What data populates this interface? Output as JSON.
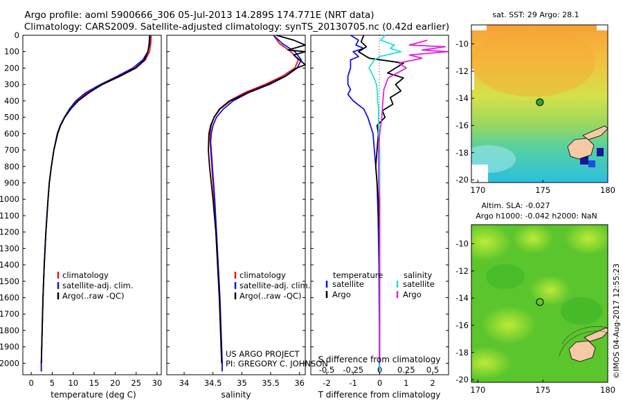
{
  "header": {
    "line1": "Argo profile: aoml 5900666_306 05-Jul-2013 14.289S 174.771E (NRT data)",
    "line2": "Climatology: CARS2009. Satellite-adjusted climatology: synTS_20130705.nc (0.42d earlier)"
  },
  "colors": {
    "climatology": "#ee1111",
    "satellite": "#1111dd",
    "argo": "#000000",
    "sal_satellite": "#22dddd",
    "sal_argo": "#dd22dd",
    "sst_bg": "#8fd27a",
    "sla_bg": "#57c32a",
    "land": "#f6c9a6"
  },
  "depth_axis": {
    "label": "",
    "ticks": [
      "0",
      "100",
      "200",
      "300",
      "400",
      "500",
      "600",
      "700",
      "800",
      "900",
      "1000",
      "1100",
      "1200",
      "1300",
      "1400",
      "1500",
      "1600",
      "1700",
      "1800",
      "1900",
      "2000"
    ]
  },
  "chart_data": [
    {
      "type": "line",
      "name": "temperature",
      "xlabel": "temperature (deg C)",
      "xlim": [
        -2,
        31
      ],
      "ylim": [
        2070,
        0
      ],
      "xticks": [
        "0",
        "5",
        "10",
        "15",
        "20",
        "25",
        "30"
      ],
      "legend": [
        "climatology",
        "satellite-adj. clim.",
        "Argo(..raw -QC)"
      ],
      "series": [
        {
          "name": "climatology",
          "depth": [
            0,
            50,
            100,
            150,
            200,
            250,
            300,
            350,
            400,
            450,
            500,
            550,
            600,
            700,
            800,
            900,
            1000,
            1200,
            1400,
            1600,
            1800,
            2000,
            2050
          ],
          "values": [
            28.6,
            28.5,
            28.2,
            27.2,
            25.0,
            21.2,
            17.0,
            13.4,
            11.0,
            9.3,
            8.0,
            7.0,
            6.3,
            5.4,
            4.8,
            4.3,
            4.0,
            3.5,
            3.1,
            2.8,
            2.6,
            2.4,
            2.4
          ]
        },
        {
          "name": "satellite-adj. clim.",
          "depth": [
            0,
            50,
            100,
            150,
            200,
            250,
            300,
            350,
            400,
            450,
            500,
            550,
            600,
            700,
            800,
            900,
            1000,
            1200,
            1400,
            1600,
            1800,
            2000,
            2050
          ],
          "values": [
            28.2,
            28.1,
            27.8,
            26.6,
            24.2,
            20.5,
            16.5,
            13.0,
            10.6,
            9.1,
            7.9,
            6.9,
            6.2,
            5.4,
            4.8,
            4.3,
            4.0,
            3.5,
            3.1,
            2.8,
            2.6,
            2.4,
            2.4
          ]
        },
        {
          "name": "Argo",
          "depth": [
            0,
            50,
            100,
            150,
            200,
            250,
            300,
            350,
            400,
            450,
            500,
            550,
            600,
            700,
            800,
            900,
            1000,
            1200,
            1400,
            1600,
            1800,
            2000
          ],
          "values": [
            28.3,
            28.2,
            27.8,
            27.0,
            24.8,
            21.0,
            16.9,
            13.8,
            11.2,
            9.4,
            8.0,
            7.0,
            6.3,
            5.4,
            4.8,
            4.3,
            4.0,
            3.5,
            3.1,
            2.8,
            2.6,
            2.4
          ]
        }
      ]
    },
    {
      "type": "line",
      "name": "salinity",
      "xlabel": "salinity",
      "xlim": [
        33.7,
        36.1
      ],
      "ylim": [
        2070,
        0
      ],
      "xticks": [
        "34",
        "34.5",
        "35",
        "35.5",
        "36"
      ],
      "legend": [
        "climatology",
        "satellite-adj. clim.",
        "Argo(..raw -QC)"
      ],
      "series": [
        {
          "name": "climatology",
          "depth": [
            0,
            50,
            100,
            150,
            200,
            250,
            300,
            350,
            400,
            450,
            500,
            550,
            600,
            650,
            700,
            800,
            900,
            1000,
            1200,
            1400,
            1600,
            1800,
            2000,
            2050
          ],
          "values": [
            35.55,
            35.65,
            35.85,
            35.98,
            35.92,
            35.7,
            35.4,
            35.05,
            34.78,
            34.61,
            34.52,
            34.47,
            34.45,
            34.45,
            34.46,
            34.48,
            34.5,
            34.52,
            34.56,
            34.59,
            34.62,
            34.64,
            34.66,
            34.66
          ]
        },
        {
          "name": "satellite-adj. clim.",
          "depth": [
            0,
            50,
            100,
            150,
            200,
            250,
            300,
            350,
            400,
            450,
            500,
            550,
            600,
            650,
            700,
            800,
            900,
            1000,
            1200,
            1400,
            1600,
            1800,
            2000,
            2050
          ],
          "values": [
            35.55,
            35.7,
            35.92,
            36.03,
            35.96,
            35.76,
            35.48,
            35.12,
            34.85,
            34.68,
            34.56,
            34.5,
            34.47,
            34.46,
            34.47,
            34.49,
            34.51,
            34.53,
            34.56,
            34.59,
            34.62,
            34.64,
            34.66,
            34.66
          ]
        },
        {
          "name": "Argo",
          "depth": [
            0,
            30,
            60,
            90,
            100,
            120,
            150,
            180,
            200,
            250,
            300,
            350,
            400,
            450,
            500,
            550,
            600,
            700,
            800,
            900,
            1000,
            1200,
            1400,
            1600,
            1800,
            2000
          ],
          "values": [
            35.6,
            35.9,
            36.1,
            35.8,
            36.1,
            35.9,
            36.0,
            36.1,
            35.95,
            35.75,
            35.45,
            35.1,
            34.8,
            34.62,
            34.52,
            34.46,
            34.43,
            34.42,
            34.44,
            34.47,
            34.5,
            34.55,
            34.58,
            34.61,
            34.63,
            34.65
          ]
        }
      ]
    },
    {
      "type": "line",
      "name": "difference",
      "xlabel": "T difference from climatology",
      "xlabel2": "S difference from climatology",
      "xlim": [
        -2.6,
        2.6
      ],
      "ylim": [
        2070,
        0
      ],
      "xticks": [
        "-2",
        "-1",
        "0",
        "1",
        "2"
      ],
      "xticks2": [
        "-0.5",
        "-0.25",
        "0",
        "0.25",
        "0.5"
      ],
      "legend_t": [
        "temperature",
        "satellite",
        "Argo"
      ],
      "legend_s": [
        "salinity",
        "satellite",
        "Argo"
      ],
      "series": [
        {
          "name": "T satellite",
          "depth": [
            0,
            30,
            60,
            80,
            100,
            130,
            150,
            200,
            250,
            300,
            330,
            360,
            400,
            450,
            500,
            600,
            700,
            800,
            900,
            1000,
            1100,
            1200,
            1400,
            1600,
            1800,
            2000,
            2050
          ],
          "values": [
            -1.1,
            -0.8,
            -0.9,
            -0.6,
            -1.0,
            -0.8,
            -1.1,
            -1.1,
            -1.2,
            -1.2,
            -1.1,
            -1.2,
            -1.0,
            -0.6,
            -0.45,
            -0.25,
            -0.2,
            -0.15,
            -0.1,
            -0.08,
            -0.06,
            -0.05,
            -0.03,
            -0.02,
            -0.01,
            -0.01,
            -0.01
          ]
        },
        {
          "name": "T Argo",
          "depth": [
            0,
            40,
            70,
            100,
            140,
            170,
            200,
            230,
            260,
            300,
            340,
            380,
            420,
            460,
            500,
            550,
            600,
            700,
            800,
            900,
            1000,
            1100,
            1200,
            1400,
            1600,
            1800,
            2000
          ],
          "values": [
            -0.6,
            -0.7,
            -0.5,
            -0.8,
            -0.4,
            0.9,
            0.6,
            0.3,
            0.9,
            0.6,
            0.8,
            0.4,
            0.5,
            0.1,
            0.2,
            -0.1,
            -0.05,
            -0.1,
            -0.15,
            -0.1,
            -0.05,
            -0.05,
            -0.02,
            0.0,
            0.0,
            0.0,
            0.0
          ]
        },
        {
          "name": "S satellite",
          "depth": [
            0,
            30,
            60,
            80,
            100,
            130,
            150,
            200,
            250,
            300,
            350,
            400,
            450,
            500,
            600,
            700,
            800,
            1000,
            1200,
            1400,
            1600,
            1800,
            2000,
            2050
          ],
          "values": [
            0.05,
            0.01,
            0.14,
            0.1,
            0.2,
            0.0,
            -0.05,
            -0.1,
            -0.06,
            -0.03,
            -0.02,
            -0.02,
            -0.01,
            -0.01,
            -0.01,
            0.0,
            0.0,
            0.0,
            0.0,
            0.0,
            0.0,
            0.0,
            0.0,
            0.0
          ]
        },
        {
          "name": "S Argo",
          "depth": [
            30,
            60,
            70,
            90,
            100,
            120,
            140,
            170,
            200,
            260,
            330,
            400,
            500,
            600,
            700,
            800,
            900,
            1000,
            1100,
            1200,
            1400,
            1600,
            1800,
            2000
          ],
          "values": [
            0.45,
            0.28,
            0.62,
            0.4,
            0.64,
            0.28,
            0.4,
            0.18,
            0.25,
            0.08,
            0.04,
            0.03,
            0.02,
            0.0,
            -0.01,
            -0.01,
            -0.01,
            0.0,
            0.0,
            0.0,
            0.0,
            0.0,
            0.0,
            0.0
          ]
        }
      ]
    },
    {
      "type": "heatmap",
      "name": "sst-map",
      "title": "sat. SST: 29 Argo: 28.1",
      "xlim": [
        169.5,
        180
      ],
      "ylim": [
        -20.2,
        -8.6
      ],
      "xticks": [
        "170",
        "175",
        "180"
      ],
      "yticks": [
        "-10",
        "-12",
        "-14",
        "-16",
        "-18",
        "-20"
      ],
      "marker": {
        "lon": 174.771,
        "lat": -14.289
      }
    },
    {
      "type": "heatmap",
      "name": "sla-map",
      "title": "Altim. SLA: -0.027",
      "subtitle": "Argo h1000: -0.042 h2000: NaN",
      "xlim": [
        169.5,
        180
      ],
      "ylim": [
        -20.2,
        -8.6
      ],
      "xticks": [
        "170",
        "175",
        "180"
      ],
      "yticks": [
        "-10",
        "-12",
        "-14",
        "-16",
        "-18",
        "-20"
      ],
      "marker": {
        "lon": 174.771,
        "lat": -14.289
      }
    }
  ],
  "credits": {
    "project": "US ARGO PROJECT",
    "pi": "PI: GREGORY C. JOHNSON",
    "stamp": "©IMOS 04-Aug-2017 12:55:23"
  }
}
